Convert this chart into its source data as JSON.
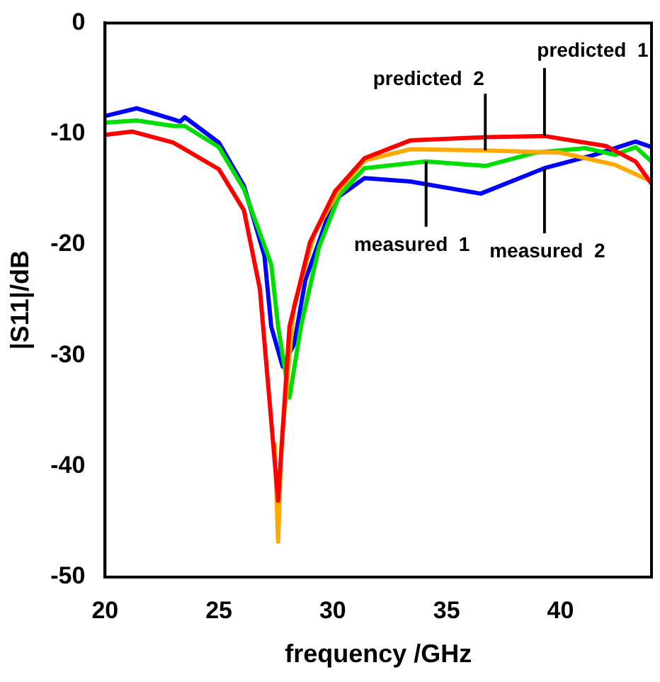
{
  "chart_data": {
    "type": "line",
    "xlabel": "frequency /GHz",
    "ylabel": "|S11|/dB",
    "xlim": [
      20,
      44
    ],
    "ylim": [
      -50,
      0
    ],
    "xticks": [
      20,
      25,
      30,
      35,
      40
    ],
    "yticks": [
      -50,
      -40,
      -30,
      -20,
      -10,
      0
    ],
    "grid": false,
    "legend": false,
    "marker": "none",
    "line_style": "solid",
    "series": [
      {
        "name": "measured  2",
        "color": "#0000ff",
        "x": [
          20,
          21.4,
          23,
          23.3,
          23.5,
          25,
          26.1,
          27,
          27.3,
          27.8,
          28.3,
          28.8,
          29.9,
          30.1,
          31.4,
          33.4,
          36.5,
          39.3,
          41.5,
          43.3,
          44
        ],
        "values": [
          -8.4,
          -7.7,
          -8.7,
          -8.9,
          -8.5,
          -10.8,
          -14.7,
          -21,
          -27.4,
          -31,
          -29,
          -23.2,
          -16.8,
          -15.9,
          -14,
          -14.3,
          -15.4,
          -13.1,
          -11.9,
          -10.7,
          -11.2
        ]
      },
      {
        "name": "measured  1",
        "color": "#00dd00",
        "x": [
          20,
          21.4,
          23,
          23.5,
          25,
          26.1,
          27.3,
          27.6,
          28.1,
          28.6,
          29.4,
          30.3,
          31.4,
          34.1,
          36.7,
          38.9,
          41.1,
          42.4,
          43.3,
          44
        ],
        "values": [
          -9,
          -8.8,
          -9.3,
          -9.3,
          -11.2,
          -15,
          -21.8,
          -27.4,
          -33.8,
          -27.4,
          -20.2,
          -15.5,
          -13.1,
          -12.5,
          -12.9,
          -11.7,
          -11.3,
          -11.9,
          -11.2,
          -12.5
        ]
      },
      {
        "name": "predicted  2",
        "color": "#ffaa00",
        "x": [
          27.45,
          27.6,
          27.75,
          28.3,
          29.2,
          30.3,
          31.4,
          33.4,
          36.7,
          40,
          42.4,
          44
        ],
        "values": [
          -38,
          -46.8,
          -38,
          -25.5,
          -19,
          -15,
          -12.4,
          -11.4,
          -11.5,
          -11.7,
          -12.8,
          -14.3
        ]
      },
      {
        "name": "predicted  1",
        "color": "#ff0000",
        "x": [
          20,
          21.2,
          23,
          25,
          26.1,
          26.8,
          27.6,
          28.1,
          29,
          30.1,
          31.4,
          33.4,
          36.7,
          39.3,
          42,
          43.3,
          44
        ],
        "values": [
          -10.1,
          -9.8,
          -10.8,
          -13.2,
          -16.9,
          -24,
          -43.1,
          -27.4,
          -19.8,
          -15.2,
          -12.2,
          -10.6,
          -10.3,
          -10.2,
          -11.1,
          -12.5,
          -14.5
        ]
      }
    ]
  }
}
